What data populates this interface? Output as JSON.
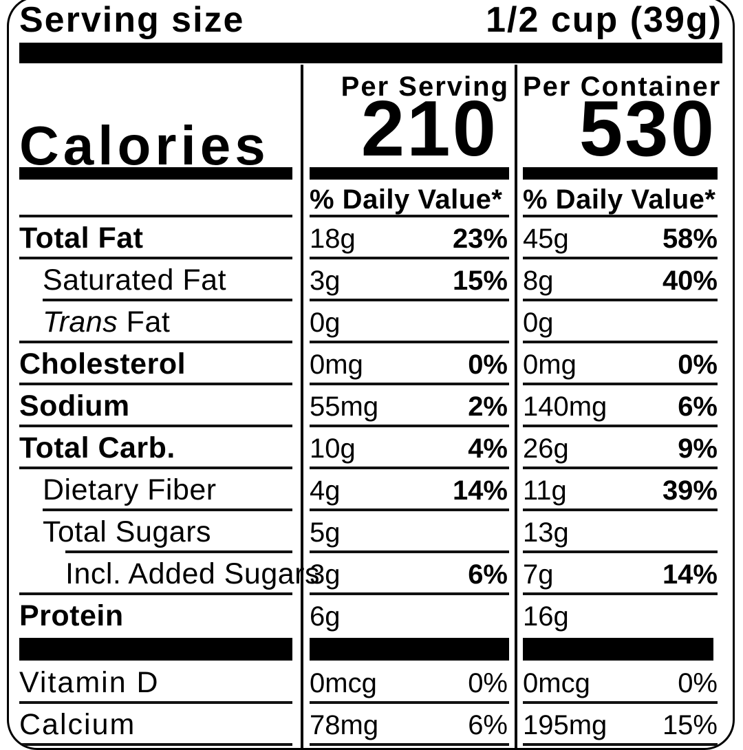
{
  "serving": {
    "label": "Serving size",
    "value": "1/2 cup (39g)"
  },
  "calories": {
    "label": "Calories",
    "per_serving": {
      "header": "Per Serving",
      "value": "210",
      "dv_header": "% Daily Value*"
    },
    "per_container": {
      "header": "Per Container",
      "value": "530",
      "dv_header": "% Daily Value*"
    }
  },
  "nutrients": [
    {
      "name": "Total Fat",
      "bold": true,
      "indent": 0,
      "serving_amount": "18g",
      "serving_dv": "23%",
      "container_amount": "45g",
      "container_dv": "58%",
      "dv_bold": true,
      "line": "full"
    },
    {
      "name": "Saturated Fat",
      "bold": false,
      "indent": 1,
      "serving_amount": "3g",
      "serving_dv": "15%",
      "container_amount": "8g",
      "container_dv": "40%",
      "dv_bold": true,
      "line": "sub"
    },
    {
      "name_italic": "Trans",
      "name": " Fat",
      "bold": false,
      "indent": 1,
      "serving_amount": "0g",
      "serving_dv": "",
      "container_amount": "0g",
      "container_dv": "",
      "dv_bold": true,
      "line": "full"
    },
    {
      "name": "Cholesterol",
      "bold": true,
      "indent": 0,
      "serving_amount": "0mg",
      "serving_dv": "0%",
      "container_amount": "0mg",
      "container_dv": "0%",
      "dv_bold": true,
      "line": "full"
    },
    {
      "name": "Sodium",
      "bold": true,
      "indent": 0,
      "serving_amount": "55mg",
      "serving_dv": "2%",
      "container_amount": "140mg",
      "container_dv": "6%",
      "dv_bold": true,
      "line": "full"
    },
    {
      "name": "Total Carb.",
      "bold": true,
      "indent": 0,
      "serving_amount": "10g",
      "serving_dv": "4%",
      "container_amount": "26g",
      "container_dv": "9%",
      "dv_bold": true,
      "line": "full"
    },
    {
      "name": "Dietary Fiber",
      "bold": false,
      "indent": 1,
      "serving_amount": "4g",
      "serving_dv": "14%",
      "container_amount": "11g",
      "container_dv": "39%",
      "dv_bold": true,
      "line": "sub"
    },
    {
      "name": "Total Sugars",
      "bold": false,
      "indent": 1,
      "serving_amount": "5g",
      "serving_dv": "",
      "container_amount": "13g",
      "container_dv": "",
      "dv_bold": true,
      "line": "subsub"
    },
    {
      "name": "Incl. Added Sugars",
      "bold": false,
      "indent": 2,
      "serving_amount": "3g",
      "serving_dv": "6%",
      "container_amount": "7g",
      "container_dv": "14%",
      "dv_bold": true,
      "line": "full"
    },
    {
      "name": "Protein",
      "bold": true,
      "indent": 0,
      "serving_amount": "6g",
      "serving_dv": "",
      "container_amount": "16g",
      "container_dv": "",
      "dv_bold": true,
      "line": "none"
    },
    {
      "type": "separator_bar"
    },
    {
      "name": "Vitamin D",
      "bold": false,
      "indent": 0,
      "serving_amount": "0mcg",
      "serving_dv": "0%",
      "container_amount": "0mcg",
      "container_dv": "0%",
      "dv_bold": false,
      "line": "full",
      "vitamin": true
    },
    {
      "name": "Calcium",
      "bold": false,
      "indent": 0,
      "serving_amount": "78mg",
      "serving_dv": "6%",
      "container_amount": "195mg",
      "container_dv": "15%",
      "dv_bold": false,
      "line": "full",
      "vitamin": true
    }
  ],
  "colors": {
    "ink": "#000000",
    "paper": "#ffffff"
  }
}
